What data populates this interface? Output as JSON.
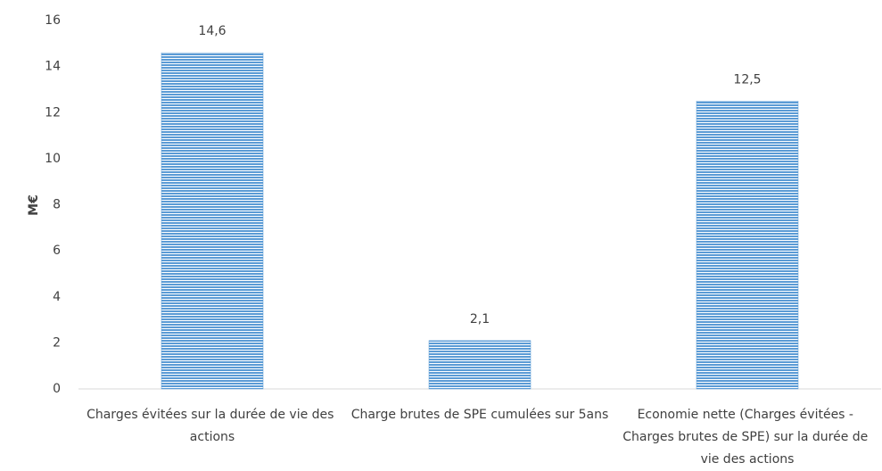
{
  "chart_data": {
    "type": "bar",
    "y_label": "M€",
    "categories": [
      "Charges évitées sur la durée de vie des actions",
      "Charge brutes de SPE cumulées sur 5ans",
      "Economie nette (Charges évitées - Charges brutes de SPE) sur la durée de vie des actions"
    ],
    "values": [
      14.6,
      2.1,
      12.5
    ],
    "value_labels": [
      "14,6",
      "2,1",
      "12,5"
    ],
    "color": "#5b9bd5",
    "ylim": [
      0,
      16
    ],
    "yticks": [
      0,
      2,
      4,
      6,
      8,
      10,
      12,
      14,
      16
    ],
    "grid": false
  }
}
